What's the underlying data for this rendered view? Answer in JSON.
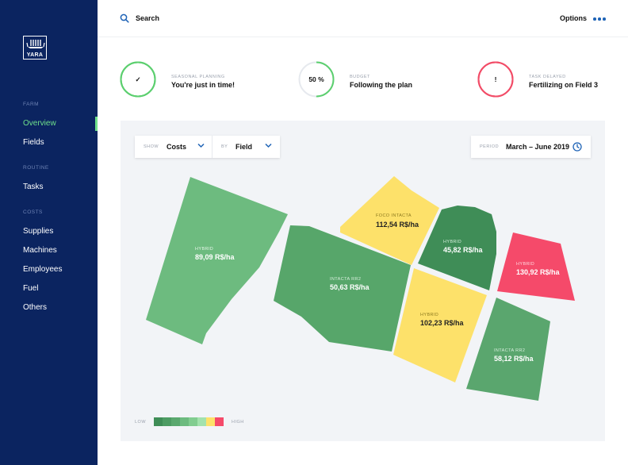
{
  "brand": {
    "logo_text": "YARA"
  },
  "sidebar": {
    "groups": [
      {
        "label": "FARM",
        "items": [
          {
            "label": "Overview",
            "active": true
          },
          {
            "label": "Fields"
          }
        ]
      },
      {
        "label": "ROUTINE",
        "items": [
          {
            "label": "Tasks"
          }
        ]
      },
      {
        "label": "COSTS",
        "items": [
          {
            "label": "Supplies"
          },
          {
            "label": "Machines"
          },
          {
            "label": "Employees"
          },
          {
            "label": "Fuel"
          },
          {
            "label": "Others"
          }
        ]
      }
    ]
  },
  "header": {
    "search_label": "Search",
    "search_icon": "search-icon",
    "options_label": "Options",
    "more_icon": "more-dots-icon"
  },
  "status_cards": [
    {
      "kicker": "SEASONAL PLANNING",
      "title": "You're just in time!",
      "indicator": "✓",
      "icon": "check-icon",
      "ring_color": "#5ccf6f",
      "progress": 1.0
    },
    {
      "kicker": "BUDGET",
      "title": "Following the plan",
      "indicator": "50 %",
      "ring_color": "#5ccf6f",
      "track_color": "#e6e9ee",
      "progress": 0.5
    },
    {
      "kicker": "TASK DELAYED",
      "title": "Fertilizing on Field 3",
      "indicator": "!",
      "icon": "exclamation-icon",
      "ring_color": "#f24d68",
      "progress": 1.0
    }
  ],
  "filters": {
    "show_label": "SHOW",
    "show_value": "Costs",
    "by_label": "BY",
    "by_value": "Field",
    "period_label": "PERIOD",
    "period_value": "March – June 2019",
    "chevron_icon": "chevron-down-icon",
    "clock_icon": "clock-icon"
  },
  "fields": [
    {
      "crop": "HYBRID",
      "value": "89,09 R$/ha",
      "color": "#6dbb7f"
    },
    {
      "crop": "FOCO INTACTA",
      "value": "112,54 R$/ha",
      "color": "#fde16a"
    },
    {
      "crop": "HYBRID",
      "value": "45,82 R$/ha",
      "color": "#3f8d57"
    },
    {
      "crop": "HYBRID",
      "value": "130,92 R$/ha",
      "color": "#f54a6a"
    },
    {
      "crop": "INTACTA RR2",
      "value": "50,63 R$/ha",
      "color": "#57a66a"
    },
    {
      "crop": "HYBRID",
      "value": "102,23 R$/ha",
      "color": "#fde16a"
    },
    {
      "crop": "INTACTA RR2",
      "value": "58,12 R$/ha",
      "color": "#5aa66e"
    }
  ],
  "legend": {
    "low_label": "LOW",
    "high_label": "HIGH",
    "colors": [
      "#3f8d57",
      "#4d9c63",
      "#5aa86e",
      "#6dbb7f",
      "#82cd90",
      "#a3e2ad",
      "#fde16a",
      "#f54a6a"
    ]
  },
  "colors": {
    "sidebar": "#0b2460",
    "accent_green": "#6fe08a",
    "link_blue": "#1e63b6",
    "panel_bg": "#f2f4f7"
  }
}
